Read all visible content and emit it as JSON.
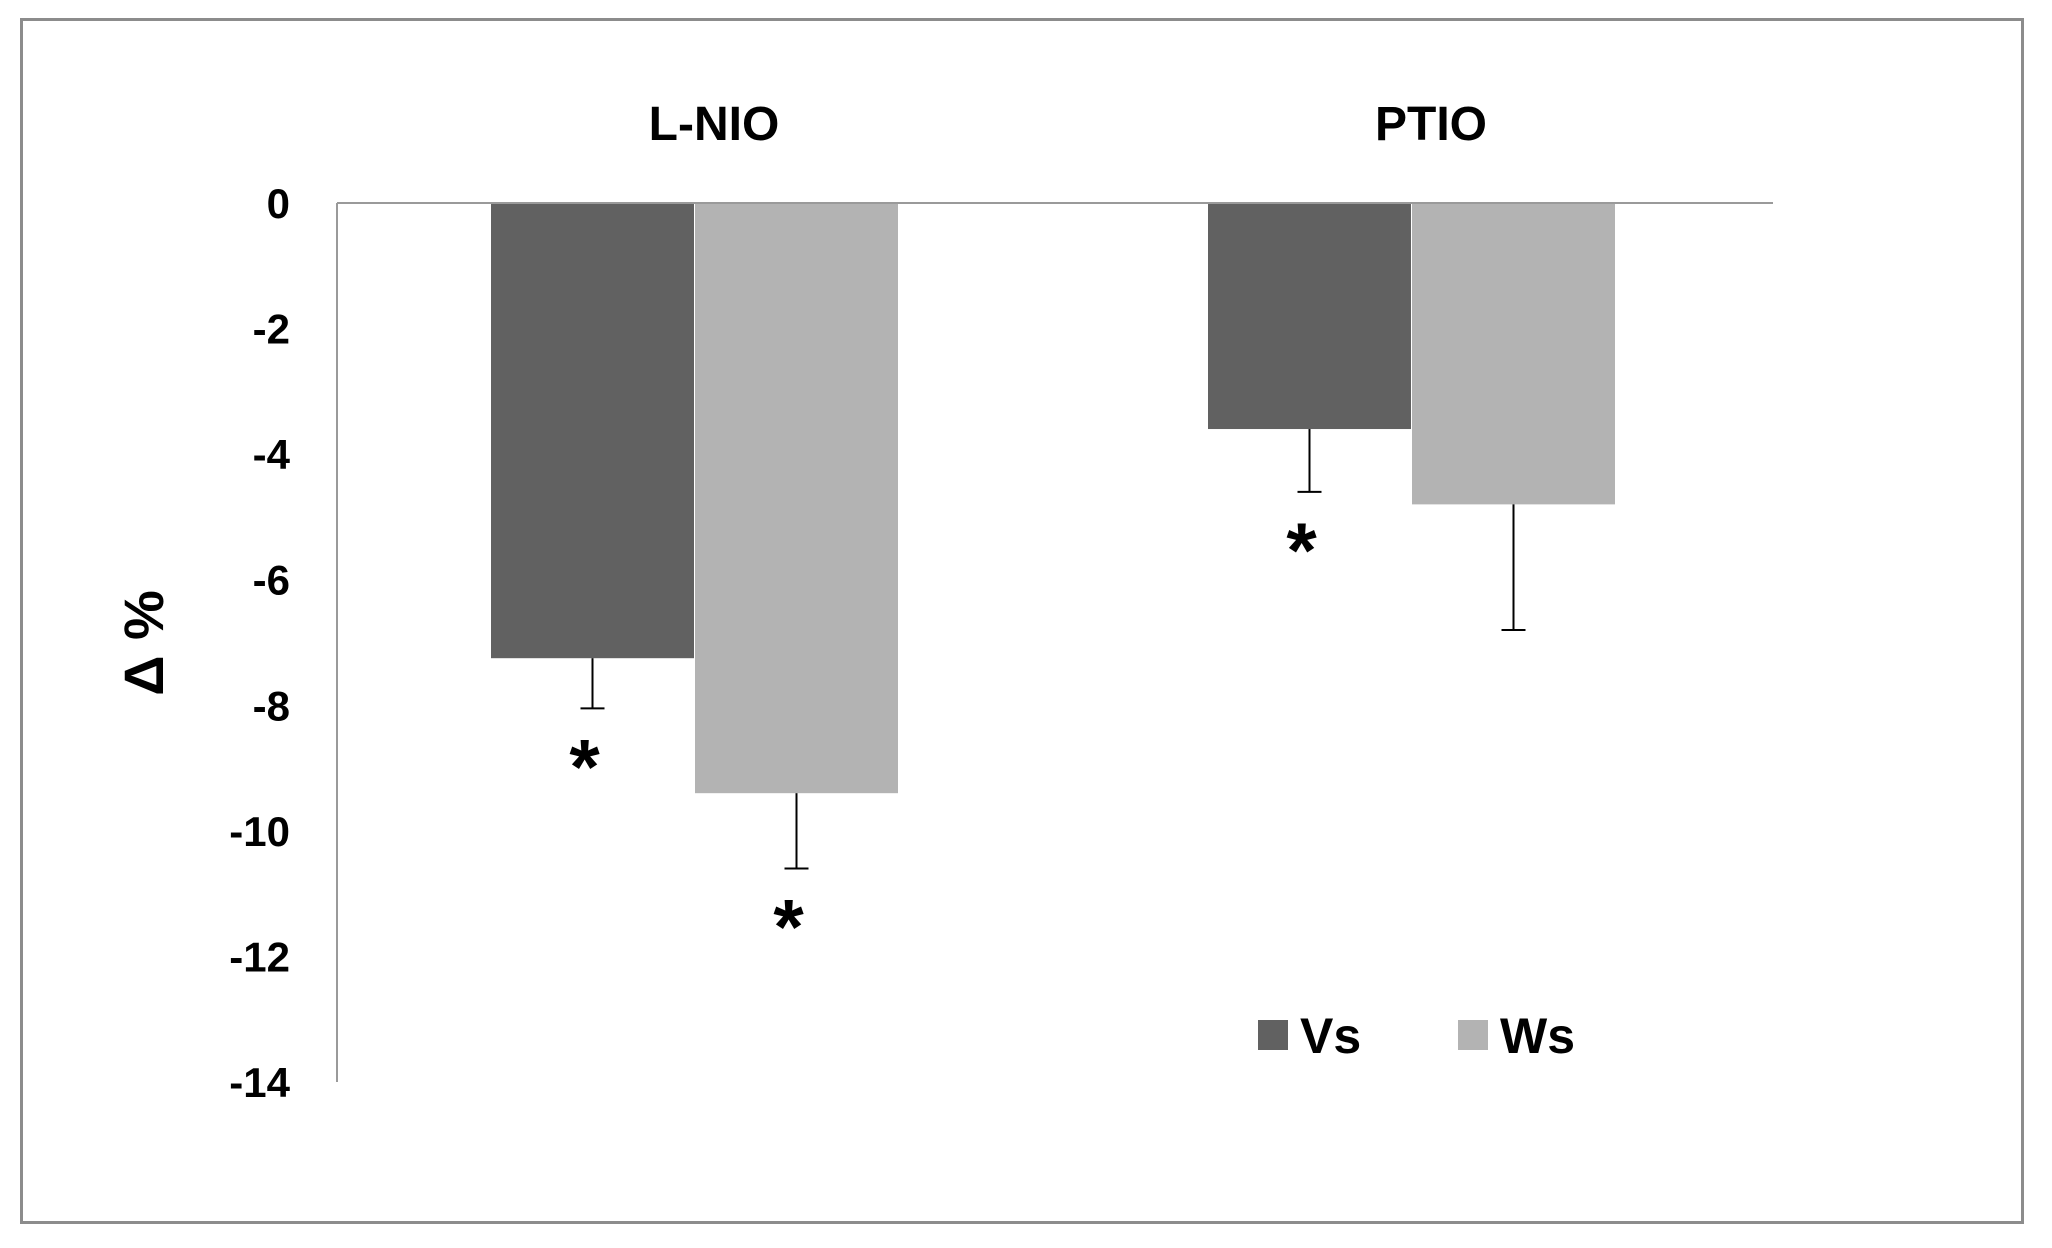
{
  "chart_data": {
    "type": "bar",
    "title": "",
    "xlabel": "",
    "ylabel": "Δ %",
    "ylim": [
      -14,
      0
    ],
    "yticks": [
      0,
      -2,
      -4,
      -6,
      -8,
      -10,
      -12,
      -14
    ],
    "ytick_labels": [
      "0",
      "-2",
      "-4",
      "-6",
      "-8",
      "-10",
      "-12",
      "-14"
    ],
    "categories": [
      "L-NIO",
      "PTIO"
    ],
    "category_axis_position": "top",
    "series": [
      {
        "name": "Vs",
        "color": "#616161",
        "values": [
          -7.25,
          -3.6
        ],
        "errors": [
          0.8,
          1.0
        ],
        "significant": [
          true,
          true
        ]
      },
      {
        "name": "Ws",
        "color": "#b3b3b3",
        "values": [
          -9.4,
          -4.8
        ],
        "errors": [
          1.2,
          2.0
        ],
        "significant": [
          true,
          false
        ]
      }
    ],
    "significance_symbol": "*",
    "grid": false,
    "legend": {
      "position": "bottom-right"
    }
  }
}
